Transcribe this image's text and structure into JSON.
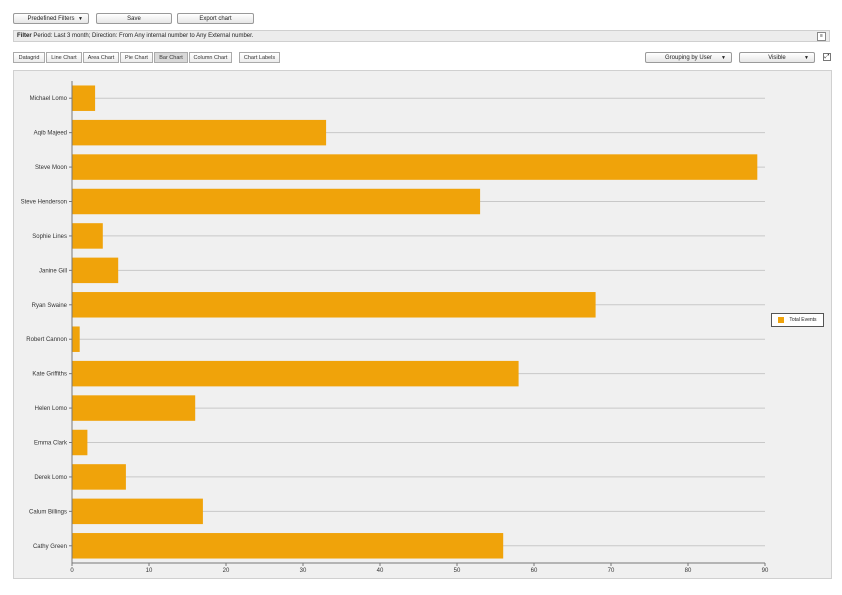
{
  "toolbar": {
    "predefined_filters": "Predefined Filters",
    "save": "Save",
    "export_chart": "Export chart"
  },
  "filter": {
    "label": "Filter",
    "text": "Period: Last 3 month; Direction: From Any internal number to Any External number."
  },
  "tabs": [
    "Datagrid",
    "Line Chart",
    "Area Chart",
    "Pie Chart",
    "Bar Chart",
    "Column Chart",
    "Chart Labels"
  ],
  "active_tab": "Bar Chart",
  "selectors": {
    "grouping": "Grouping by User",
    "metric": "Visible"
  },
  "colors": {
    "bar": "#f0a30a",
    "grid": "#c8c8c8",
    "background": "#f0f0f0"
  },
  "chart_data": {
    "type": "bar",
    "orientation": "horizontal",
    "categories": [
      "Michael Lomo",
      "Aqib Majeed",
      "Steve Moon",
      "Steve Henderson",
      "Sophie Lines",
      "Janine Gill",
      "Ryan Swaine",
      "Robert Cannon",
      "Kate Griffiths",
      "Helen Lomo",
      "Emma Clark",
      "Derek Lomo",
      "Calum Billings",
      "Cathy Green"
    ],
    "series": [
      {
        "name": "Total Events",
        "values": [
          3,
          33,
          89,
          53,
          4,
          6,
          68,
          1,
          58,
          16,
          2,
          7,
          17,
          56
        ]
      }
    ],
    "xlim": [
      0,
      90
    ],
    "xticks": [
      0,
      10,
      20,
      30,
      40,
      50,
      60,
      70,
      80,
      90
    ],
    "grid": true,
    "legend": "right",
    "title": "",
    "xlabel": "",
    "ylabel": ""
  }
}
